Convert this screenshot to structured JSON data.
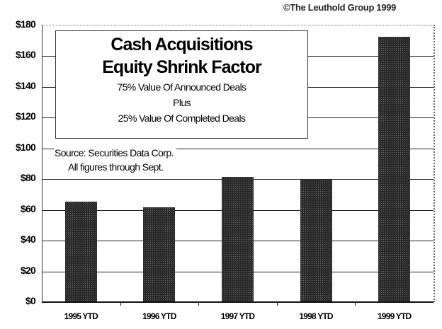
{
  "copyright": "©The Leuthold Group 1999",
  "title_box": {
    "line1": "Cash Acquisitions",
    "line2": "Equity Shrink Factor",
    "line3": "75% Value Of Announced Deals",
    "line4": "Plus",
    "line5": "25% Value Of Completed Deals"
  },
  "source": {
    "line1": "Source: Securities Data Corp.",
    "line2": "All figures through Sept."
  },
  "y_ticks": [
    "$180",
    "$160",
    "$140",
    "$120",
    "$100",
    "$80",
    "$60",
    "$40",
    "$20",
    "$0"
  ],
  "x_labels": [
    "1995 YTD",
    "1996 YTD",
    "1997 YTD",
    "1998 YTD",
    "1999 YTD"
  ],
  "colors": {
    "bar": "#2a2a2a",
    "grid": "#222222",
    "background": "#ffffff"
  },
  "chart_data": {
    "type": "bar",
    "title": "Cash Acquisitions Equity Shrink Factor",
    "subtitle": "75% Value Of Announced Deals Plus 25% Value Of Completed Deals",
    "annotations": [
      "Source: Securities Data Corp.",
      "All figures through Sept.",
      "©The Leuthold Group 1999"
    ],
    "categories": [
      "1995 YTD",
      "1996 YTD",
      "1997 YTD",
      "1998 YTD",
      "1999 YTD"
    ],
    "values": [
      65,
      61,
      81,
      79,
      172
    ],
    "xlabel": "",
    "ylabel": "",
    "y_unit": "$",
    "ylim": [
      0,
      180
    ],
    "ytick_step": 20,
    "grid": true,
    "legend": "none"
  }
}
